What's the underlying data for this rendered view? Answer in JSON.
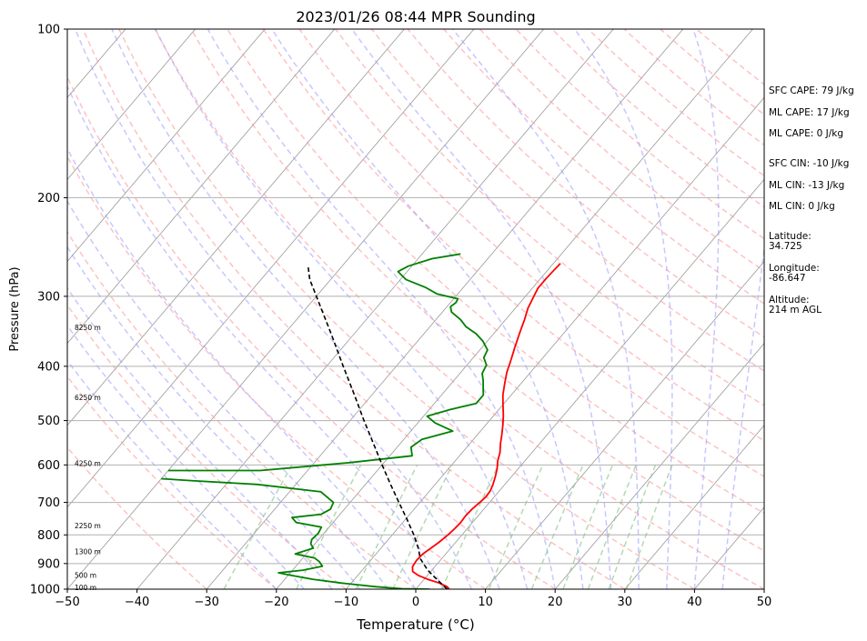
{
  "chart_data": {
    "type": "skew-t",
    "title": "2023/01/26 08:44 MPR Sounding",
    "xlabel": "Temperature (°C)",
    "ylabel": "Pressure (hPa)",
    "xlim": [
      -50,
      50
    ],
    "ylim": [
      1000,
      100
    ],
    "y_scale": "log",
    "x_ticks": [
      "−50",
      "−40",
      "−30",
      "−20",
      "−10",
      "0",
      "10",
      "20",
      "30",
      "40",
      "50"
    ],
    "y_ticks": [
      "100",
      "200",
      "300",
      "400",
      "500",
      "600",
      "700",
      "800",
      "900",
      "1000"
    ],
    "y_tick_values": [
      100,
      200,
      300,
      400,
      500,
      600,
      700,
      800,
      900,
      1000
    ],
    "grid": true,
    "colors": {
      "temperature": "#ff0000",
      "dewpoint": "#008000",
      "parcel": "#000000",
      "dry_adiabat": "#ff9999",
      "moist_adiabat": "#9999ff",
      "mixing_ratio": "#80c080",
      "isotherm": "#999999"
    },
    "series": [
      {
        "role": "temperature",
        "points": [
          [
            1000,
            4.8
          ],
          [
            990,
            4.2
          ],
          [
            975,
            2.6
          ],
          [
            960,
            0.5
          ],
          [
            945,
            -1.3
          ],
          [
            930,
            -2.6
          ],
          [
            912,
            -3.2
          ],
          [
            890,
            -3.4
          ],
          [
            865,
            -3.3
          ],
          [
            848,
            -2.9
          ],
          [
            825,
            -2.4
          ],
          [
            800,
            -2.0
          ],
          [
            780,
            -1.8
          ],
          [
            760,
            -1.7
          ],
          [
            740,
            -1.8
          ],
          [
            720,
            -1.7
          ],
          [
            700,
            -1.4
          ],
          [
            685,
            -1.2
          ],
          [
            668,
            -1.3
          ],
          [
            650,
            -1.7
          ],
          [
            630,
            -2.3
          ],
          [
            610,
            -3.0
          ],
          [
            590,
            -3.9
          ],
          [
            570,
            -4.6
          ],
          [
            550,
            -5.6
          ],
          [
            530,
            -6.5
          ],
          [
            510,
            -7.5
          ],
          [
            490,
            -8.6
          ],
          [
            470,
            -9.9
          ],
          [
            450,
            -11.2
          ],
          [
            430,
            -12.3
          ],
          [
            410,
            -13.4
          ],
          [
            390,
            -14.3
          ],
          [
            370,
            -15.3
          ],
          [
            350,
            -16.3
          ],
          [
            330,
            -17.3
          ],
          [
            315,
            -18.2
          ],
          [
            300,
            -18.8
          ],
          [
            290,
            -19.2
          ],
          [
            280,
            -19.2
          ],
          [
            270,
            -19.1
          ],
          [
            262,
            -19.0
          ]
        ]
      },
      {
        "role": "dewpoint",
        "points": [
          [
            1000,
            2.0
          ],
          [
            998,
            -2.0
          ],
          [
            990,
            -6.0
          ],
          [
            975,
            -11.5
          ],
          [
            960,
            -16.0
          ],
          [
            945,
            -19.5
          ],
          [
            935,
            -21.7
          ],
          [
            925,
            -18.5
          ],
          [
            910,
            -16.2
          ],
          [
            893,
            -17.2
          ],
          [
            880,
            -18.3
          ],
          [
            865,
            -21.6
          ],
          [
            845,
            -19.7
          ],
          [
            830,
            -20.6
          ],
          [
            815,
            -21.0
          ],
          [
            795,
            -20.8
          ],
          [
            775,
            -21.1
          ],
          [
            760,
            -25.3
          ],
          [
            745,
            -26.5
          ],
          [
            735,
            -22.7
          ],
          [
            720,
            -22.0
          ],
          [
            700,
            -22.4
          ],
          [
            670,
            -25.5
          ],
          [
            650,
            -35.5
          ],
          [
            640,
            -45.5
          ],
          [
            635,
            -50.0
          ]
        ],
        "upper_points": [
          [
            614,
            -50.0
          ],
          [
            614,
            -36.8
          ],
          [
            602,
            -29.5
          ],
          [
            594,
            -24.8
          ],
          [
            578,
            -16.8
          ],
          [
            558,
            -18.0
          ],
          [
            540,
            -17.4
          ],
          [
            522,
            -14.0
          ],
          [
            505,
            -17.5
          ],
          [
            491,
            -19.5
          ],
          [
            478,
            -17.0
          ],
          [
            466,
            -14.0
          ],
          [
            450,
            -14.0
          ],
          [
            437,
            -14.9
          ],
          [
            424,
            -15.8
          ],
          [
            412,
            -16.8
          ],
          [
            398,
            -17.2
          ],
          [
            386,
            -18.5
          ],
          [
            374,
            -18.9
          ],
          [
            361,
            -20.6
          ],
          [
            350,
            -22.5
          ],
          [
            340,
            -24.8
          ],
          [
            330,
            -26.5
          ],
          [
            320,
            -28.7
          ],
          [
            313,
            -29.5
          ],
          [
            308,
            -29.2
          ],
          [
            303,
            -29.4
          ],
          [
            297,
            -33.0
          ],
          [
            289,
            -35.5
          ],
          [
            280,
            -39.2
          ],
          [
            271,
            -41.3
          ],
          [
            265,
            -40.5
          ],
          [
            257,
            -38.0
          ],
          [
            252,
            -34.5
          ]
        ]
      },
      {
        "role": "parcel",
        "points": [
          [
            1000,
            4.5
          ],
          [
            960,
            1.8
          ],
          [
            925,
            -0.6
          ],
          [
            880,
            -3.2
          ],
          [
            850,
            -4.4
          ],
          [
            800,
            -6.9
          ],
          [
            750,
            -9.8
          ],
          [
            700,
            -13.0
          ],
          [
            650,
            -16.4
          ],
          [
            600,
            -20.0
          ],
          [
            550,
            -23.8
          ],
          [
            500,
            -28.0
          ],
          [
            450,
            -32.5
          ],
          [
            400,
            -37.6
          ],
          [
            350,
            -43.3
          ],
          [
            300,
            -50.0
          ],
          [
            280,
            -53.0
          ],
          [
            264,
            -55.0
          ]
        ]
      }
    ],
    "height_labels": [
      {
        "label": "100 m",
        "p": 996
      },
      {
        "label": "500 m",
        "p": 948
      },
      {
        "label": "1300 m",
        "p": 860
      },
      {
        "label": "2250 m",
        "p": 773
      },
      {
        "label": "4250 m",
        "p": 598
      },
      {
        "label": "6250 m",
        "p": 456
      },
      {
        "label": "8250 m",
        "p": 342
      }
    ]
  },
  "info": {
    "sfc_cape": "SFC CAPE: 79 J/kg",
    "ml_cape_1": "ML CAPE: 17 J/kg",
    "ml_cape_2": "ML CAPE: 0 J/kg",
    "sfc_cin": "SFC CIN: -10 J/kg",
    "ml_cin_1": "ML CIN: -13 J/kg",
    "ml_cin_2": "ML CIN: 0 J/kg",
    "latitude_label": "Latitude:",
    "latitude_value": "34.725",
    "longitude_label": "Longitude:",
    "longitude_value": "-86.647",
    "altitude_label": "Altitude:",
    "altitude_value": "214 m AGL"
  }
}
